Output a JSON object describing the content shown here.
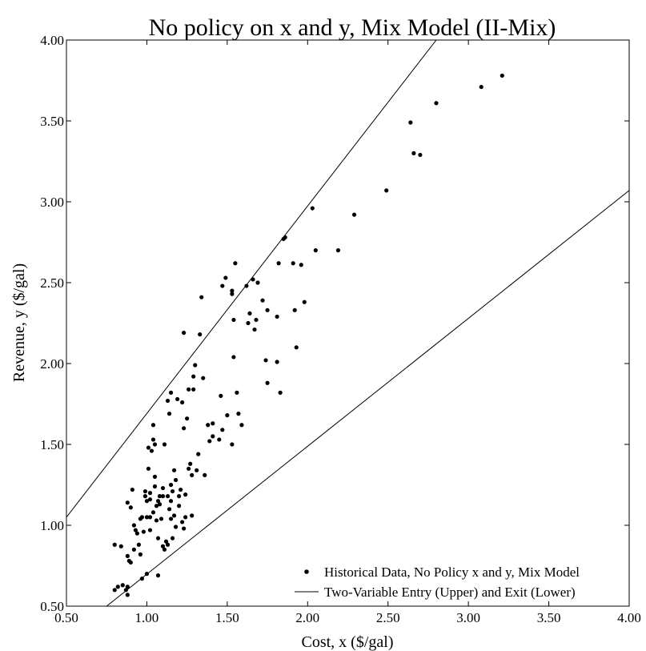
{
  "chart_data": {
    "type": "scatter",
    "title": "No policy on x and y, Mix Model (II-Mix)",
    "xlabel": "Cost, x ($/gal)",
    "ylabel": "Revenue, y ($/gal)",
    "xlim": [
      0.5,
      4.0
    ],
    "ylim": [
      0.5,
      4.0
    ],
    "xticks": [
      "0.50",
      "1.00",
      "1.50",
      "2.00",
      "2.50",
      "3.00",
      "3.50",
      "4.00"
    ],
    "yticks": [
      "0.50",
      "1.00",
      "1.50",
      "2.00",
      "2.50",
      "3.00",
      "3.50",
      "4.00"
    ],
    "grid": false,
    "legend_position": "bottom-right",
    "series": [
      {
        "name": "Historical Data, No Policy x and y, Mix Model",
        "kind": "points",
        "color": "#000000",
        "points": [
          [
            0.8,
            0.6
          ],
          [
            0.82,
            0.62
          ],
          [
            0.8,
            0.88
          ],
          [
            0.84,
            0.87
          ],
          [
            0.85,
            0.63
          ],
          [
            0.87,
            0.6
          ],
          [
            0.88,
            0.57
          ],
          [
            0.88,
            0.62
          ],
          [
            0.88,
            0.81
          ],
          [
            0.89,
            0.78
          ],
          [
            0.9,
            0.77
          ],
          [
            0.9,
            1.11
          ],
          [
            0.88,
            1.14
          ],
          [
            0.91,
            1.22
          ],
          [
            0.92,
            1.0
          ],
          [
            0.92,
            0.85
          ],
          [
            0.93,
            0.97
          ],
          [
            0.94,
            0.95
          ],
          [
            0.95,
            0.88
          ],
          [
            0.96,
            0.82
          ],
          [
            0.96,
            1.04
          ],
          [
            0.97,
            1.05
          ],
          [
            0.97,
            0.67
          ],
          [
            0.98,
            0.96
          ],
          [
            0.99,
            1.18
          ],
          [
            0.99,
            1.21
          ],
          [
            1.0,
            1.05
          ],
          [
            1.0,
            0.7
          ],
          [
            1.0,
            1.15
          ],
          [
            1.01,
            1.35
          ],
          [
            1.01,
            1.48
          ],
          [
            1.02,
            1.2
          ],
          [
            1.02,
            1.16
          ],
          [
            1.02,
            1.05
          ],
          [
            1.02,
            0.97
          ],
          [
            1.03,
            1.46
          ],
          [
            1.04,
            1.08
          ],
          [
            1.04,
            1.53
          ],
          [
            1.04,
            1.62
          ],
          [
            1.05,
            1.5
          ],
          [
            1.05,
            1.24
          ],
          [
            1.05,
            1.3
          ],
          [
            1.06,
            1.12
          ],
          [
            1.06,
            1.03
          ],
          [
            1.07,
            0.69
          ],
          [
            1.07,
            0.92
          ],
          [
            1.07,
            1.15
          ],
          [
            1.08,
            1.18
          ],
          [
            1.08,
            1.13
          ],
          [
            1.09,
            1.04
          ],
          [
            1.1,
            0.87
          ],
          [
            1.1,
            1.18
          ],
          [
            1.1,
            1.23
          ],
          [
            1.11,
            0.85
          ],
          [
            1.11,
            1.5
          ],
          [
            1.12,
            0.9
          ],
          [
            1.13,
            0.88
          ],
          [
            1.13,
            1.18
          ],
          [
            1.13,
            1.77
          ],
          [
            1.14,
            1.69
          ],
          [
            1.14,
            1.1
          ],
          [
            1.15,
            1.04
          ],
          [
            1.15,
            1.15
          ],
          [
            1.15,
            1.25
          ],
          [
            1.15,
            1.82
          ],
          [
            1.16,
            0.92
          ],
          [
            1.16,
            1.21
          ],
          [
            1.17,
            1.34
          ],
          [
            1.17,
            1.06
          ],
          [
            1.18,
            1.28
          ],
          [
            1.18,
            0.99
          ],
          [
            1.19,
            1.78
          ],
          [
            1.2,
            1.18
          ],
          [
            1.2,
            1.12
          ],
          [
            1.21,
            1.22
          ],
          [
            1.22,
            1.76
          ],
          [
            1.22,
            1.02
          ],
          [
            1.23,
            0.98
          ],
          [
            1.23,
            1.6
          ],
          [
            1.23,
            2.19
          ],
          [
            1.24,
            1.05
          ],
          [
            1.24,
            1.19
          ],
          [
            1.25,
            1.66
          ],
          [
            1.26,
            1.84
          ],
          [
            1.26,
            1.35
          ],
          [
            1.27,
            1.38
          ],
          [
            1.28,
            1.31
          ],
          [
            1.28,
            1.06
          ],
          [
            1.29,
            1.84
          ],
          [
            1.29,
            1.92
          ],
          [
            1.3,
            1.99
          ],
          [
            1.31,
            1.34
          ],
          [
            1.32,
            1.44
          ],
          [
            1.33,
            2.18
          ],
          [
            1.34,
            2.41
          ],
          [
            1.35,
            1.91
          ],
          [
            1.36,
            1.31
          ],
          [
            1.38,
            1.62
          ],
          [
            1.39,
            1.52
          ],
          [
            1.41,
            1.55
          ],
          [
            1.41,
            1.63
          ],
          [
            1.45,
            1.53
          ],
          [
            1.46,
            1.8
          ],
          [
            1.47,
            1.59
          ],
          [
            1.47,
            2.48
          ],
          [
            1.49,
            2.53
          ],
          [
            1.5,
            1.68
          ],
          [
            1.53,
            1.5
          ],
          [
            1.53,
            2.45
          ],
          [
            1.53,
            2.43
          ],
          [
            1.54,
            2.04
          ],
          [
            1.54,
            2.27
          ],
          [
            1.55,
            2.62
          ],
          [
            1.56,
            1.82
          ],
          [
            1.57,
            1.69
          ],
          [
            1.59,
            1.62
          ],
          [
            1.62,
            2.48
          ],
          [
            1.63,
            2.25
          ],
          [
            1.64,
            2.31
          ],
          [
            1.66,
            2.52
          ],
          [
            1.67,
            2.21
          ],
          [
            1.68,
            2.27
          ],
          [
            1.69,
            2.5
          ],
          [
            1.72,
            2.39
          ],
          [
            1.74,
            2.02
          ],
          [
            1.75,
            2.33
          ],
          [
            1.75,
            1.88
          ],
          [
            1.81,
            2.01
          ],
          [
            1.81,
            2.29
          ],
          [
            1.82,
            2.62
          ],
          [
            1.83,
            1.82
          ],
          [
            1.85,
            2.77
          ],
          [
            1.86,
            2.78
          ],
          [
            1.91,
            2.62
          ],
          [
            1.92,
            2.33
          ],
          [
            1.93,
            2.1
          ],
          [
            1.96,
            2.61
          ],
          [
            1.98,
            2.38
          ],
          [
            2.03,
            2.96
          ],
          [
            2.05,
            2.7
          ],
          [
            2.19,
            2.7
          ],
          [
            2.29,
            2.92
          ],
          [
            2.49,
            3.07
          ],
          [
            2.64,
            3.49
          ],
          [
            2.66,
            3.3
          ],
          [
            2.7,
            3.29
          ],
          [
            2.8,
            3.61
          ],
          [
            3.08,
            3.71
          ],
          [
            3.21,
            3.78
          ]
        ]
      },
      {
        "name": "Two-Variable Entry (Upper) and Exit (Lower)",
        "kind": "lines",
        "color": "#000000",
        "lines": [
          [
            [
              0.5,
              1.05
            ],
            [
              2.8,
              4.0
            ]
          ],
          [
            [
              0.75,
              0.5
            ],
            [
              4.0,
              3.07
            ]
          ]
        ]
      }
    ]
  }
}
